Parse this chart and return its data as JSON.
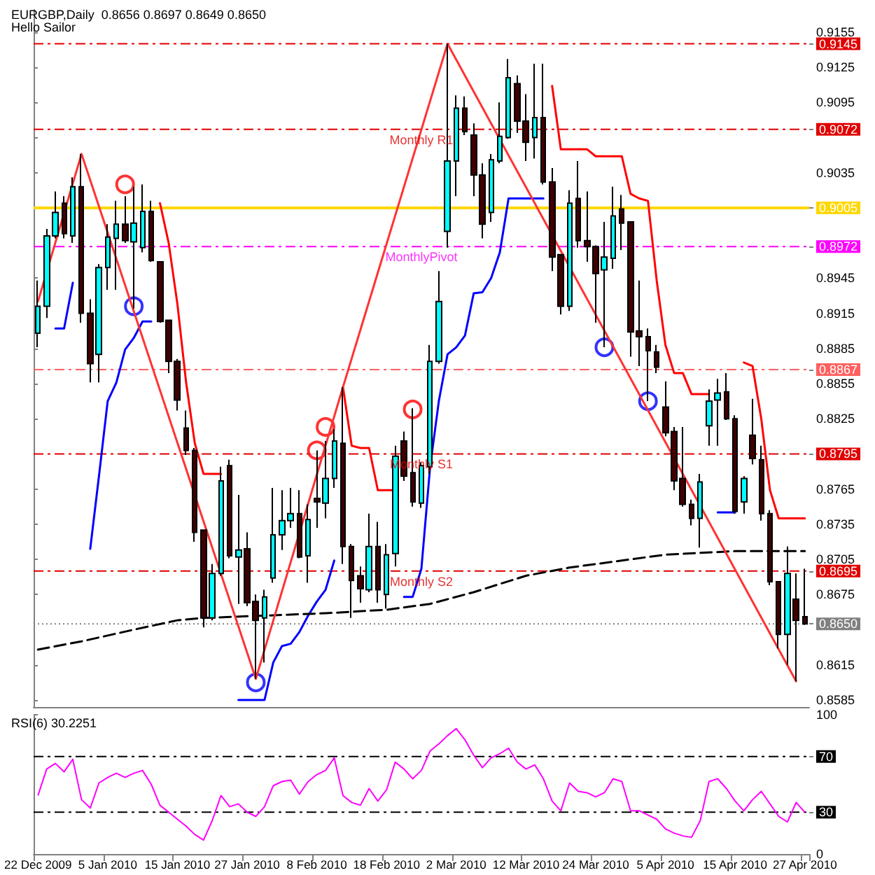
{
  "chart_data": [
    {
      "type": "candlestick",
      "title": "EURGBP,Daily  0.8656 0.8697 0.8649 0.8650",
      "subtitle": "Hello Sailor",
      "categories": [
        null,
        null,
        null,
        null,
        null,
        null,
        null,
        null,
        null,
        null,
        null,
        null,
        null,
        null,
        null,
        null,
        null,
        null,
        null,
        null,
        null,
        null,
        null,
        null,
        null,
        null,
        null,
        null,
        null,
        null,
        null,
        null,
        null,
        null,
        null,
        null,
        null,
        null,
        null,
        null,
        null,
        null,
        null,
        null,
        null,
        null,
        null,
        null,
        null,
        null,
        null,
        null,
        null,
        null,
        null,
        null,
        null,
        null,
        null,
        null,
        null,
        null,
        null,
        null,
        null,
        null,
        null,
        null,
        null,
        null,
        null,
        null,
        null,
        null,
        null,
        null,
        null,
        null,
        null,
        null,
        null,
        null,
        null,
        null,
        null,
        null,
        null,
        null,
        null
      ],
      "ohlc": [
        [
          0.8898,
          0.8943,
          0.8886,
          0.8921
        ],
        [
          0.8921,
          0.8987,
          0.8911,
          0.8981
        ],
        [
          0.8981,
          0.9019,
          0.8979,
          0.9001
        ],
        [
          0.9009,
          0.9015,
          0.8979,
          0.8983
        ],
        [
          0.8981,
          0.9031,
          0.8975,
          0.9023
        ],
        [
          0.9023,
          0.9051,
          0.8907,
          0.8915
        ],
        [
          0.8915,
          0.8927,
          0.8856,
          0.8872
        ],
        [
          0.888,
          0.8957,
          0.8856,
          0.8954
        ],
        [
          0.8954,
          0.8991,
          0.8935,
          0.898
        ],
        [
          0.8979,
          0.9011,
          0.8935,
          0.8991
        ],
        [
          0.8991,
          0.9015,
          0.8975,
          0.8977
        ],
        [
          0.8976,
          0.9023,
          0.8919,
          0.8992
        ],
        [
          0.8971,
          0.9025,
          0.8967,
          0.9002
        ],
        [
          0.9002,
          0.9011,
          0.8959,
          0.896
        ],
        [
          0.8959,
          0.8959,
          0.8907,
          0.8908
        ],
        [
          0.8909,
          0.8909,
          0.8864,
          0.8874
        ],
        [
          0.8874,
          0.8876,
          0.8832,
          0.8841
        ],
        [
          0.8817,
          0.8832,
          0.8794,
          0.8798
        ],
        [
          0.8798,
          0.88,
          0.872,
          0.8728
        ],
        [
          0.873,
          0.873,
          0.8647,
          0.8655
        ],
        [
          0.8655,
          0.8701,
          0.8653,
          0.8693
        ],
        [
          0.8693,
          0.8784,
          0.8691,
          0.8772
        ],
        [
          0.8785,
          0.879,
          0.8706,
          0.8708
        ],
        [
          0.8707,
          0.876,
          0.8667,
          0.8713
        ],
        [
          0.8714,
          0.8728,
          0.8665,
          0.8668
        ],
        [
          0.8669,
          0.8675,
          0.8603,
          0.8653
        ],
        [
          0.8655,
          0.8679,
          0.8617,
          0.8673
        ],
        [
          0.8689,
          0.8766,
          0.8685,
          0.8726
        ],
        [
          0.8726,
          0.8764,
          0.8713,
          0.8738
        ],
        [
          0.8738,
          0.8766,
          0.8732,
          0.8744
        ],
        [
          0.8744,
          0.8764,
          0.8706,
          0.8707
        ],
        [
          0.8708,
          0.8752,
          0.8685,
          0.8739
        ],
        [
          0.8757,
          0.8798,
          0.8732,
          0.8754
        ],
        [
          0.8753,
          0.8806,
          0.874,
          0.8774
        ],
        [
          0.8774,
          0.8816,
          0.8766,
          0.8806
        ],
        [
          0.8804,
          0.8852,
          0.8701,
          0.8716
        ],
        [
          0.8716,
          0.8718,
          0.8655,
          0.8687
        ],
        [
          0.8691,
          0.8699,
          0.8668,
          0.868
        ],
        [
          0.8679,
          0.8744,
          0.8677,
          0.8716
        ],
        [
          0.8716,
          0.8737,
          0.8668,
          0.8679
        ],
        [
          0.8675,
          0.8718,
          0.8663,
          0.8709
        ],
        [
          0.871,
          0.8802,
          0.8699,
          0.8793
        ],
        [
          0.8806,
          0.8814,
          0.8772,
          0.8776
        ],
        [
          0.8779,
          0.8834,
          0.875,
          0.8754
        ],
        [
          0.8753,
          0.8788,
          0.8749,
          0.8785
        ],
        [
          0.8784,
          0.8888,
          0.8778,
          0.8874
        ],
        [
          0.8874,
          0.8951,
          0.8872,
          0.8925
        ],
        [
          0.8985,
          0.9145,
          0.8971,
          0.9045
        ],
        [
          0.9045,
          0.9101,
          0.9015,
          0.909
        ],
        [
          0.909,
          0.91,
          0.9067,
          0.907
        ],
        [
          0.9067,
          0.9077,
          0.9015,
          0.9033
        ],
        [
          0.9033,
          0.9043,
          0.8979,
          0.8991
        ],
        [
          0.9001,
          0.9051,
          0.8993,
          0.9046
        ],
        [
          0.9045,
          0.9095,
          0.9043,
          0.9066
        ],
        [
          0.9065,
          0.9132,
          0.9064,
          0.9116
        ],
        [
          0.9111,
          0.9118,
          0.9069,
          0.9079
        ],
        [
          0.9079,
          0.9102,
          0.9045,
          0.9061
        ],
        [
          0.9065,
          0.9128,
          0.9047,
          0.9082
        ],
        [
          0.9082,
          0.9128,
          0.9025,
          0.9027
        ],
        [
          0.9027,
          0.9039,
          0.8951,
          0.8963
        ],
        [
          0.8965,
          0.8965,
          0.8914,
          0.8921
        ],
        [
          0.8921,
          0.902,
          0.8917,
          0.9009
        ],
        [
          0.9013,
          0.9045,
          0.8971,
          0.8977
        ],
        [
          0.8977,
          0.9019,
          0.8959,
          0.8972
        ],
        [
          0.8972,
          0.8973,
          0.8907,
          0.8949
        ],
        [
          0.8952,
          0.8993,
          0.8886,
          0.8963
        ],
        [
          0.8962,
          0.9023,
          0.8953,
          0.8998
        ],
        [
          0.9004,
          0.9016,
          0.8969,
          0.8992
        ],
        [
          0.8993,
          0.8993,
          0.8878,
          0.8899
        ],
        [
          0.89,
          0.8943,
          0.887,
          0.8895
        ],
        [
          0.8895,
          0.8902,
          0.884,
          0.8883
        ],
        [
          0.8882,
          0.8888,
          0.8864,
          0.8869
        ],
        [
          0.8835,
          0.8857,
          0.881,
          0.8813
        ],
        [
          0.8814,
          0.8818,
          0.8764,
          0.8772
        ],
        [
          0.8774,
          0.8818,
          0.875,
          0.8752
        ],
        [
          0.8752,
          0.8756,
          0.8734,
          0.874
        ],
        [
          0.874,
          0.8778,
          0.8715,
          0.8771
        ],
        [
          0.8819,
          0.885,
          0.8802,
          0.884
        ],
        [
          0.8841,
          0.8859,
          0.8802,
          0.8847
        ],
        [
          0.8848,
          0.8864,
          0.8824,
          0.8825
        ],
        [
          0.8825,
          0.8828,
          0.8744,
          0.8746
        ],
        [
          0.8754,
          0.8776,
          0.8744,
          0.8774
        ],
        [
          0.8811,
          0.8842,
          0.8786,
          0.8791
        ],
        [
          0.879,
          0.8802,
          0.8738,
          0.8744
        ],
        [
          0.8744,
          0.8747,
          0.8683,
          0.8686
        ],
        [
          0.8686,
          0.8686,
          0.8629,
          0.8641
        ],
        [
          0.8641,
          0.8716,
          0.8615,
          0.8693
        ],
        [
          0.8671,
          0.8693,
          0.8601,
          0.8653
        ],
        [
          0.8656,
          0.8697,
          0.8649,
          0.865
        ]
      ],
      "colors": [
        "#00ffff",
        "#00ffff",
        "#00ffff",
        "#400000",
        "#00ffff",
        "#400000",
        "#400000",
        "#00ffff",
        "#00ffff",
        "#00ffff",
        "#400000",
        "#00ffff",
        "#00ffff",
        "#400000",
        "#400000",
        "#400000",
        "#400000",
        "#400000",
        "#400000",
        "#400000",
        "#00ffff",
        "#00ffff",
        "#400000",
        "#00ffff",
        "#400000",
        "#400000",
        "#00ffff",
        "#00ffff",
        "#00ffff",
        "#00ffff",
        "#400000",
        "#00ffff",
        "#400000",
        "#00ffff",
        "#00ffff",
        "#400000",
        "#400000",
        "#400000",
        "#00ffff",
        "#400000",
        "#00ffff",
        "#00ffff",
        "#400000",
        "#400000",
        "#00ffff",
        "#00ffff",
        "#00ffff",
        "#00ffff",
        "#00ffff",
        "#400000",
        "#400000",
        "#400000",
        "#00ffff",
        "#00ffff",
        "#00ffff",
        "#400000",
        "#400000",
        "#00ffff",
        "#400000",
        "#400000",
        "#400000",
        "#00ffff",
        "#400000",
        "#400000",
        "#400000",
        "#00ffff",
        "#00ffff",
        "#400000",
        "#400000",
        "#400000",
        "#400000",
        "#400000",
        "#400000",
        "#400000",
        "#400000",
        "#400000",
        "#00ffff",
        "#00ffff",
        "#00ffff",
        "#400000",
        "#400000",
        "#00ffff",
        "#400000",
        "#400000",
        "#400000",
        "#400000",
        "#00ffff",
        "#400000",
        "#400000"
      ],
      "series": [
        {
          "type": "line",
          "color": "#ff0000",
          "values": [
            null,
            null,
            null,
            null,
            null,
            null,
            null,
            null,
            null,
            null,
            null,
            null,
            null,
            null,
            0.9009,
            0.8975,
            0.8923,
            0.8856,
            0.8804,
            0.8778,
            0.8778,
            0.8778,
            null,
            null,
            null,
            null,
            null,
            null,
            null,
            null,
            null,
            null,
            null,
            null,
            null,
            null,
            null,
            null,
            null,
            null,
            null,
            null,
            null,
            null,
            null,
            null,
            null,
            null,
            null,
            null,
            null,
            null,
            null,
            null,
            null,
            null,
            null,
            null,
            null,
            null,
            null,
            null,
            null,
            null,
            null,
            null,
            null,
            null,
            null,
            null,
            null,
            null,
            null,
            null,
            null,
            null,
            null,
            null,
            null,
            null,
            null,
            null,
            null,
            null,
            null,
            null,
            null,
            null,
            null
          ]
        },
        {
          "type": "line",
          "color": "#ff0000",
          "values": [
            null,
            null,
            null,
            null,
            null,
            null,
            null,
            null,
            null,
            null,
            null,
            null,
            null,
            null,
            null,
            null,
            null,
            null,
            null,
            null,
            null,
            null,
            null,
            null,
            null,
            null,
            null,
            null,
            null,
            null,
            null,
            null,
            null,
            null,
            null,
            0.8852,
            0.8802,
            0.88,
            0.88,
            0.8764,
            0.8764,
            0.8764,
            null,
            null,
            null,
            null,
            null,
            null,
            null,
            null,
            null,
            null,
            null,
            null,
            null,
            null,
            null,
            null,
            null,
            null,
            null,
            null,
            null,
            null,
            null,
            null,
            null,
            null,
            null,
            null,
            null,
            null,
            null,
            null,
            null,
            null,
            null,
            null,
            null,
            null,
            null,
            null,
            null,
            null,
            null,
            null,
            null,
            null,
            null
          ]
        },
        {
          "type": "line",
          "color": "#ff0000",
          "values": [
            null,
            null,
            null,
            null,
            null,
            null,
            null,
            null,
            null,
            null,
            null,
            null,
            null,
            null,
            null,
            null,
            null,
            null,
            null,
            null,
            null,
            null,
            null,
            null,
            null,
            null,
            null,
            null,
            null,
            null,
            null,
            null,
            null,
            null,
            null,
            null,
            null,
            null,
            null,
            null,
            null,
            null,
            null,
            null,
            null,
            null,
            null,
            null,
            null,
            null,
            null,
            null,
            null,
            null,
            null,
            null,
            null,
            null,
            null,
            0.9109,
            0.9055,
            0.9055,
            0.9055,
            0.9055,
            0.9049,
            0.9049,
            0.9049,
            0.9049,
            0.9017,
            0.9013,
            0.9011,
            0.8943,
            0.8888,
            0.8864,
            0.8864,
            0.8846,
            0.8846,
            0.8846,
            null,
            null,
            null,
            null,
            null,
            null,
            null,
            null,
            null,
            null,
            null
          ]
        },
        {
          "type": "line",
          "color": "#ff0000",
          "values": [
            null,
            null,
            null,
            null,
            null,
            null,
            null,
            null,
            null,
            null,
            null,
            null,
            null,
            null,
            null,
            null,
            null,
            null,
            null,
            null,
            null,
            null,
            null,
            null,
            null,
            null,
            null,
            null,
            null,
            null,
            null,
            null,
            null,
            null,
            null,
            null,
            null,
            null,
            null,
            null,
            null,
            null,
            null,
            null,
            null,
            null,
            null,
            null,
            null,
            null,
            null,
            null,
            null,
            null,
            null,
            null,
            null,
            null,
            null,
            null,
            null,
            null,
            null,
            null,
            null,
            null,
            null,
            null,
            null,
            null,
            null,
            null,
            null,
            null,
            null,
            null,
            null,
            null,
            null,
            null,
            null,
            0.8873,
            0.887,
            0.8825,
            0.8764,
            0.874,
            0.874,
            0.874,
            0.874
          ]
        },
        {
          "type": "line",
          "color": "#0000ff",
          "values": [
            null,
            null,
            0.8902,
            0.8902,
            0.8941,
            null,
            null,
            null,
            null,
            null,
            null,
            null,
            null,
            null,
            null,
            null,
            null,
            null,
            null,
            null,
            null,
            null,
            null,
            null,
            null,
            null,
            null,
            null,
            null,
            null,
            null,
            null,
            null,
            null,
            null,
            null,
            null,
            null,
            null,
            null,
            null,
            null,
            null,
            null,
            null,
            null,
            null,
            null,
            null,
            null,
            null,
            null,
            null,
            null,
            null,
            null,
            null,
            null,
            null,
            null,
            null,
            null,
            null,
            null,
            null,
            null,
            null,
            null,
            null,
            null,
            null,
            null,
            null,
            null,
            null,
            null,
            null,
            null,
            null,
            null,
            null,
            null,
            null,
            null,
            null,
            null,
            null,
            null,
            null
          ]
        },
        {
          "type": "line",
          "color": "#0000ff",
          "values": [
            null,
            null,
            null,
            null,
            null,
            null,
            0.8714,
            0.8776,
            0.884,
            0.8856,
            0.8884,
            0.8894,
            0.8908,
            0.8908,
            null,
            null,
            null,
            null,
            null,
            null,
            null,
            null,
            null,
            null,
            null,
            null,
            null,
            null,
            null,
            null,
            null,
            null,
            null,
            null,
            null,
            null,
            null,
            null,
            null,
            null,
            null,
            null,
            null,
            null,
            null,
            null,
            null,
            null,
            null,
            null,
            null,
            null,
            null,
            null,
            null,
            null,
            null,
            null,
            null,
            null,
            null,
            null,
            null,
            null,
            null,
            null,
            null,
            null,
            null,
            null,
            null,
            null,
            null,
            null,
            null,
            null,
            null,
            null,
            null,
            null,
            null,
            null,
            null,
            null,
            null,
            null,
            null,
            null,
            null
          ]
        },
        {
          "type": "line",
          "color": "#0000ff",
          "values": [
            null,
            null,
            null,
            null,
            null,
            null,
            null,
            null,
            null,
            null,
            null,
            null,
            null,
            null,
            null,
            null,
            null,
            null,
            null,
            null,
            null,
            null,
            null,
            0.8585,
            0.8585,
            0.8585,
            0.8585,
            0.8617,
            0.8631,
            0.8633,
            0.8643,
            0.8657,
            0.8669,
            0.8679,
            0.8704,
            null,
            null,
            null,
            null,
            null,
            null,
            null,
            null,
            null,
            null,
            null,
            null,
            null,
            null,
            null,
            null,
            null,
            null,
            null,
            null,
            null,
            null,
            null,
            null,
            null,
            null,
            null,
            null,
            null,
            null,
            null,
            null,
            null,
            null,
            null,
            null,
            null,
            null,
            null,
            null,
            null,
            null,
            null,
            null,
            null,
            null,
            null,
            null,
            null,
            null,
            null,
            null,
            null,
            null
          ]
        },
        {
          "type": "line",
          "color": "#0000ff",
          "values": [
            null,
            null,
            null,
            null,
            null,
            null,
            null,
            null,
            null,
            null,
            null,
            null,
            null,
            null,
            null,
            null,
            null,
            null,
            null,
            null,
            null,
            null,
            null,
            null,
            null,
            null,
            null,
            null,
            null,
            null,
            null,
            null,
            null,
            null,
            null,
            null,
            null,
            null,
            null,
            null,
            null,
            null,
            0.8673,
            0.8673,
            0.8697,
            0.8784,
            0.884,
            0.888,
            0.8886,
            0.8896,
            0.8932,
            0.8933,
            0.8945,
            0.8967,
            0.9013,
            0.9013,
            0.9013,
            0.9013,
            0.9013,
            null,
            null,
            null,
            null,
            null,
            null,
            null,
            null,
            null,
            null,
            null,
            null,
            null,
            null,
            null,
            null,
            null,
            null,
            null,
            null,
            null,
            null,
            null,
            null,
            null,
            null,
            null,
            null,
            null,
            null
          ]
        },
        {
          "type": "line",
          "color": "#0000ff",
          "values": [
            null,
            null,
            null,
            null,
            null,
            null,
            null,
            null,
            null,
            null,
            null,
            null,
            null,
            null,
            null,
            null,
            null,
            null,
            null,
            null,
            null,
            null,
            null,
            null,
            null,
            null,
            null,
            null,
            null,
            null,
            null,
            null,
            null,
            null,
            null,
            null,
            null,
            null,
            null,
            null,
            null,
            null,
            null,
            null,
            null,
            null,
            null,
            null,
            null,
            null,
            null,
            null,
            null,
            null,
            null,
            null,
            null,
            null,
            null,
            null,
            null,
            null,
            null,
            null,
            null,
            null,
            null,
            null,
            null,
            null,
            null,
            null,
            null,
            null,
            null,
            null,
            null,
            null,
            0.8745,
            0.8745,
            0.8745,
            null,
            null,
            null,
            null,
            null,
            null,
            null,
            null
          ]
        },
        {
          "type": "line",
          "color": "#000000",
          "line_style": "dashed",
          "values": [
            0.8628,
            null,
            null,
            null,
            null,
            0.8635,
            null,
            null,
            null,
            null,
            null,
            0.8645,
            null,
            null,
            null,
            null,
            0.8653,
            null,
            null,
            0.8655,
            null,
            null,
            null,
            null,
            null,
            null,
            null,
            null,
            null,
            null,
            null,
            null,
            null,
            0.8659,
            null,
            null,
            null,
            null,
            null,
            null,
            0.8662,
            null,
            null,
            null,
            null,
            0.8667,
            null,
            null,
            null,
            null,
            0.8677,
            null,
            null,
            null,
            null,
            null,
            0.8691,
            null,
            null,
            null,
            null,
            0.8698,
            null,
            null,
            null,
            null,
            0.8703,
            null,
            null,
            null,
            null,
            null,
            0.8709,
            null,
            null,
            null,
            null,
            null,
            null,
            null,
            0.8712,
            null,
            null,
            null,
            null,
            null,
            null,
            null,
            0.8712
          ]
        },
        {
          "type": "line",
          "color": "#ff3333",
          "values": [
            0.8925,
            null,
            null,
            null,
            null,
            0.9051,
            null,
            null,
            null,
            null,
            null,
            null,
            null,
            null,
            null,
            null,
            null,
            null,
            null,
            null,
            null,
            null,
            null,
            null,
            null,
            0.8603,
            null,
            null,
            null,
            null,
            null,
            null,
            null,
            null,
            null,
            0.8852,
            null,
            null,
            null,
            null,
            null,
            null,
            null,
            null,
            null,
            null,
            null,
            0.9145,
            null,
            null,
            null,
            null,
            null,
            null,
            null,
            null,
            null,
            null,
            null,
            null,
            null,
            null,
            null,
            null,
            null,
            null,
            null,
            null,
            null,
            null,
            null,
            null,
            null,
            null,
            null,
            null,
            null,
            null,
            null,
            null,
            null,
            null,
            null,
            null,
            null,
            null,
            null,
            0.8601,
            null
          ]
        },
        {
          "type": "scatter",
          "color": "#ff0000",
          "marker": "circle",
          "values": [
            null,
            null,
            null,
            null,
            null,
            null,
            null,
            null,
            null,
            null,
            0.9025,
            null,
            null,
            null,
            null,
            null,
            null,
            null,
            null,
            null,
            null,
            null,
            null,
            null,
            null,
            null,
            null,
            null,
            null,
            null,
            null,
            null,
            0.8798,
            0.8818,
            null,
            null,
            null,
            null,
            null,
            null,
            null,
            null,
            null,
            0.8833,
            null,
            null,
            null,
            null,
            null,
            null,
            null,
            null,
            null,
            null,
            null,
            null,
            null,
            null,
            null,
            null,
            null,
            null,
            null,
            null,
            null,
            null,
            null,
            null,
            null,
            null,
            null,
            null,
            null,
            null,
            null,
            null,
            null,
            null,
            null,
            null,
            null,
            null,
            null,
            null,
            null,
            null,
            null,
            null,
            null
          ]
        },
        {
          "type": "scatter",
          "color": "#0000ff",
          "marker": "circle",
          "values": [
            null,
            null,
            null,
            null,
            null,
            null,
            null,
            null,
            null,
            null,
            null,
            0.8921,
            null,
            null,
            null,
            null,
            null,
            null,
            null,
            null,
            null,
            null,
            null,
            null,
            null,
            0.86,
            null,
            null,
            null,
            null,
            null,
            null,
            null,
            null,
            null,
            null,
            null,
            null,
            null,
            null,
            null,
            null,
            null,
            null,
            null,
            null,
            null,
            null,
            null,
            null,
            null,
            null,
            null,
            null,
            null,
            null,
            null,
            null,
            null,
            null,
            null,
            null,
            null,
            null,
            null,
            0.8886,
            null,
            null,
            null,
            null,
            0.884,
            null,
            null,
            null,
            null,
            null,
            null,
            null,
            null,
            null,
            null,
            null,
            null,
            null,
            null,
            null,
            null,
            null,
            null
          ]
        }
      ],
      "ref_lines": [
        {
          "axis": "y",
          "value": 0.9145,
          "color": "#e00000",
          "line_style": "dashed"
        },
        {
          "axis": "y",
          "value": 0.9072,
          "label": "Monthly R1",
          "color": "#e00000",
          "line_style": "dashed"
        },
        {
          "axis": "y",
          "value": 0.9005,
          "color": "#ffd700",
          "line_style": "solid"
        },
        {
          "axis": "y",
          "value": 0.8972,
          "label": "MonthlyPivot",
          "color": "#ff00ff",
          "line_style": "dashed"
        },
        {
          "axis": "y",
          "value": 0.8867,
          "color": "#ff6060",
          "line_style": "dashed"
        },
        {
          "axis": "y",
          "value": 0.8795,
          "label": "Monthly S1",
          "color": "#e00000",
          "line_style": "dashed"
        },
        {
          "axis": "y",
          "value": 0.8695,
          "label": "Monthly S2",
          "color": "#e00000",
          "line_style": "dashed"
        },
        {
          "axis": "y",
          "value": 0.865,
          "color": "#808080",
          "line_style": "dotted"
        }
      ],
      "ylim": [
        0.8579,
        0.9174
      ],
      "yticks": [
        0.8585,
        0.8615,
        {
          "value": 0.865,
          "label": "0.8650"
        },
        0.8675,
        {
          "value": 0.8695,
          "label": "0.8695"
        },
        0.8705,
        0.8735,
        0.8765,
        {
          "value": 0.8795,
          "label": "0.8795"
        },
        0.8825,
        0.8855,
        {
          "value": 0.8867,
          "label": "0.8867"
        },
        0.8885,
        0.8915,
        0.8945,
        {
          "value": 0.8972,
          "label": "0.8972"
        },
        {
          "value": 0.9005,
          "label": "0.9005"
        },
        0.9035,
        {
          "value": 0.9065,
          "label": null
        },
        {
          "value": 0.9072,
          "label": "0.9072"
        },
        0.9095,
        0.9125,
        {
          "value": 0.9145,
          "label": "0.9145"
        },
        0.9155
      ],
      "tick_labels": "y"
    },
    {
      "type": "line",
      "title": "RSI(6) 30.2251",
      "color": "#ff00ff",
      "categories": [
        "22 Dec 2009",
        null,
        null,
        null,
        null,
        null,
        null,
        null,
        "5 Jan 2010",
        null,
        null,
        null,
        null,
        null,
        null,
        null,
        "15 Jan 2010",
        null,
        null,
        null,
        null,
        null,
        null,
        null,
        "27 Jan 2010",
        null,
        null,
        null,
        null,
        null,
        null,
        null,
        "8 Feb 2010",
        null,
        null,
        null,
        null,
        null,
        null,
        null,
        "18 Feb 2010",
        null,
        null,
        null,
        null,
        null,
        null,
        null,
        "2 Mar 2010",
        null,
        null,
        null,
        null,
        null,
        null,
        null,
        "12 Mar 2010",
        null,
        null,
        null,
        null,
        null,
        null,
        null,
        "24 Mar 2010",
        null,
        null,
        null,
        null,
        null,
        null,
        null,
        "5 Apr 2010",
        null,
        null,
        null,
        null,
        null,
        null,
        null,
        "15 Apr 2010",
        null,
        null,
        null,
        null,
        null,
        null,
        null,
        "27 Apr 2010"
      ],
      "values": [
        42,
        61,
        65,
        59,
        68,
        39,
        33,
        51,
        55,
        58,
        55,
        58,
        60,
        50,
        35,
        30,
        25,
        20,
        14,
        10,
        24,
        42,
        34,
        36,
        30,
        27,
        34,
        49,
        52,
        53,
        43,
        52,
        57,
        60,
        69,
        42,
        37,
        35,
        47,
        38,
        46,
        66,
        61,
        54,
        60,
        74,
        79,
        85,
        90,
        82,
        71,
        62,
        69,
        72,
        76,
        66,
        61,
        64,
        54,
        38,
        31,
        51,
        45,
        44,
        41,
        44,
        54,
        52,
        31,
        31,
        28,
        25,
        18,
        15,
        13,
        12,
        24,
        52,
        54,
        47,
        38,
        31,
        39,
        45,
        36,
        27,
        23,
        37,
        30
      ],
      "ref_lines": [
        {
          "axis": "y",
          "value": 70,
          "color": "#000000",
          "line_style": "dashed"
        },
        {
          "axis": "y",
          "value": 30,
          "color": "#000000",
          "line_style": "dashed"
        }
      ],
      "ylim": [
        0,
        100
      ],
      "yticks": [
        0,
        30,
        70,
        100
      ]
    }
  ]
}
